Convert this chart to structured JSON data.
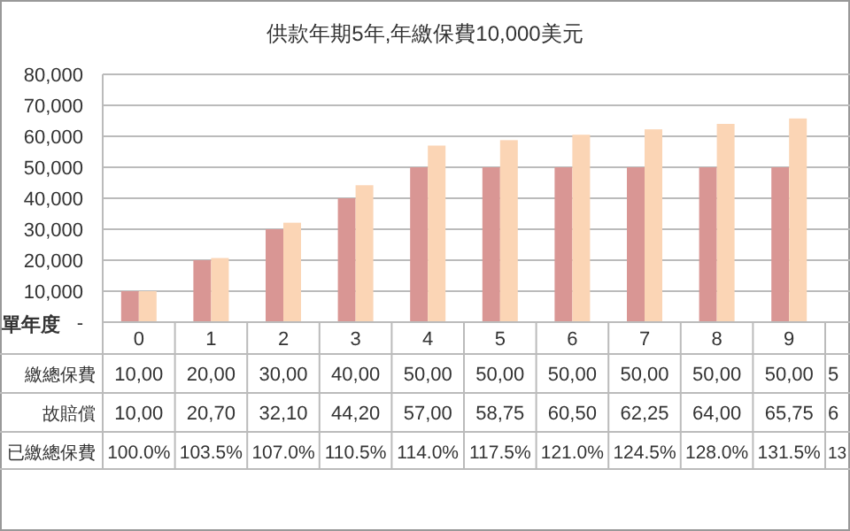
{
  "chart_data": {
    "type": "bar",
    "title": "供款年期5年,年繳保費10,000美元",
    "categories": [
      "0",
      "1",
      "2",
      "3",
      "4",
      "5",
      "6",
      "7",
      "8",
      "9"
    ],
    "series": [
      {
        "color": "#d99694",
        "values": [
          10000,
          20000,
          30000,
          40000,
          50000,
          50000,
          50000,
          50000,
          50000,
          50000
        ]
      },
      {
        "color": "#fbd5b5",
        "values": [
          10000,
          20700,
          32100,
          44200,
          57000,
          58750,
          60500,
          62250,
          64000,
          65750
        ]
      }
    ],
    "ylim": [
      0,
      80000
    ],
    "yticks": [
      {
        "value": 0,
        "label": "-"
      },
      {
        "value": 10000,
        "label": "10,000"
      },
      {
        "value": 20000,
        "label": "20,000"
      },
      {
        "value": 30000,
        "label": "30,000"
      },
      {
        "value": 40000,
        "label": "40,000"
      },
      {
        "value": 50000,
        "label": "50,000"
      },
      {
        "value": 60000,
        "label": "60,000"
      },
      {
        "value": 70000,
        "label": "70,000"
      },
      {
        "value": 80000,
        "label": "80,000"
      }
    ],
    "grid": "y",
    "annotations": [
      "單年度",
      "繳總保費",
      "故賠償",
      "已繳總保費",
      "10,00",
      "20,00",
      "30,00",
      "40,00",
      "50,00",
      "50,00",
      "50,00",
      "50,00",
      "50,00",
      "50,00",
      "5",
      "10,00",
      "20,70",
      "32,10",
      "44,20",
      "57,00",
      "58,75",
      "60,50",
      "62,25",
      "64,00",
      "65,75",
      "6",
      "100.0%",
      "103.5%",
      "107.0%",
      "110.5%",
      "114.0%",
      "117.5%",
      "121.0%",
      "124.5%",
      "128.0%",
      "131.5%",
      "13"
    ]
  }
}
